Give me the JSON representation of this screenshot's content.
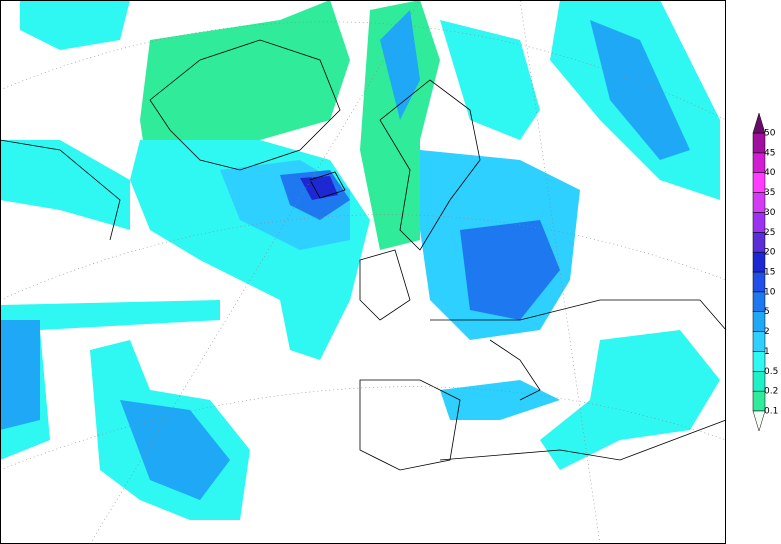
{
  "colorbar": {
    "labels": [
      "0.1",
      "0.2",
      "0.5",
      "1",
      "2",
      "5",
      "10",
      "15",
      "20",
      "25",
      "30",
      "35",
      "40",
      "45",
      "50"
    ],
    "colors": [
      "#30eb9a",
      "#1ef0c8",
      "#2ff7f2",
      "#2ed0ff",
      "#1ea8f5",
      "#1e78f0",
      "#2050e8",
      "#1e28d2",
      "#5a2fd8",
      "#9a32f0",
      "#d23cf5",
      "#ff3cff",
      "#d21ed2",
      "#a0109e"
    ],
    "under_color": "#f4fff8",
    "over_color": "#6a0a6a"
  }
}
